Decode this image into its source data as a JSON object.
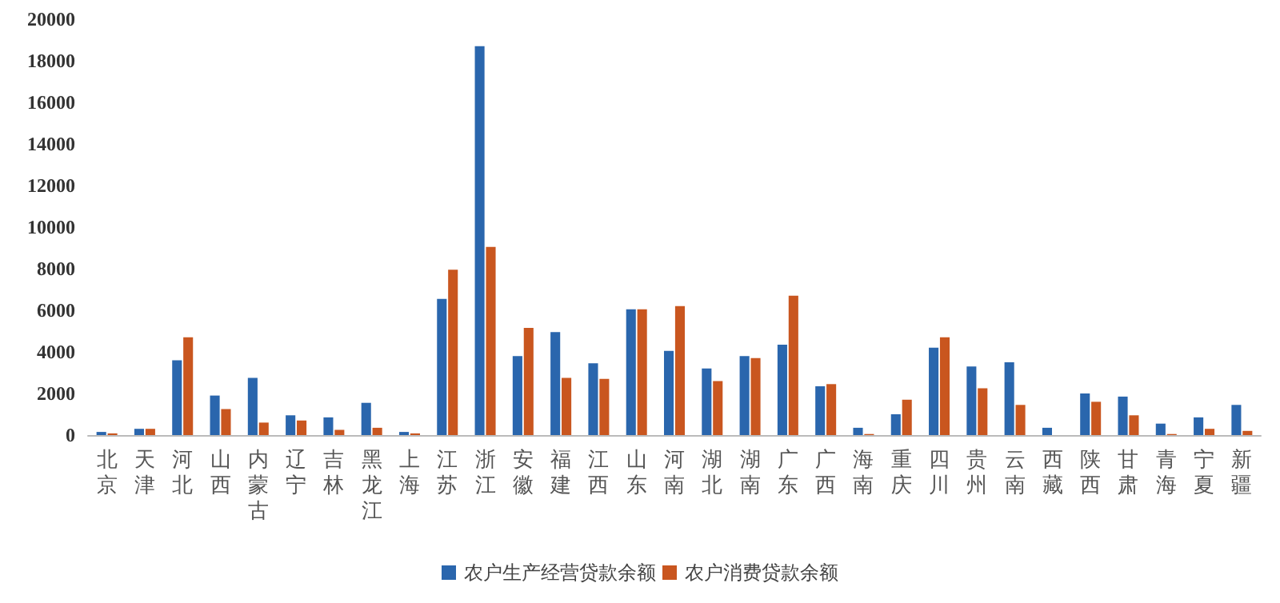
{
  "chart_data": {
    "type": "bar",
    "categories": [
      "北京",
      "天津",
      "河北",
      "山西",
      "内蒙古",
      "辽宁",
      "吉林",
      "黑龙江",
      "上海",
      "江苏",
      "浙江",
      "安徽",
      "福建",
      "江西",
      "山东",
      "河南",
      "湖北",
      "湖南",
      "广东",
      "广西",
      "海南",
      "重庆",
      "四川",
      "贵州",
      "云南",
      "西藏",
      "陕西",
      "甘肃",
      "青海",
      "宁夏",
      "新疆"
    ],
    "series": [
      {
        "name": "农户生产经营贷款余额",
        "color": "#2a66ad",
        "values": [
          150,
          300,
          3600,
          1900,
          2750,
          950,
          850,
          1550,
          150,
          6550,
          18700,
          3800,
          4950,
          3450,
          6050,
          4050,
          3200,
          3800,
          4350,
          2350,
          350,
          1000,
          4200,
          3300,
          3500,
          350,
          2000,
          1850,
          550,
          850,
          1450
        ]
      },
      {
        "name": "农户消费贷款余额",
        "color": "#c9561f",
        "values": [
          80,
          300,
          4700,
          1250,
          600,
          700,
          250,
          350,
          80,
          7950,
          9050,
          5150,
          2750,
          2700,
          6050,
          6200,
          2600,
          3700,
          6700,
          2450,
          50,
          1700,
          4700,
          2250,
          1450,
          0,
          1600,
          950,
          50,
          300,
          200
        ]
      }
    ],
    "ylim": [
      0,
      20000
    ],
    "yticks": [
      0,
      2000,
      4000,
      6000,
      8000,
      10000,
      12000,
      14000,
      16000,
      18000,
      20000
    ],
    "grid": false,
    "legend": "bottom"
  }
}
